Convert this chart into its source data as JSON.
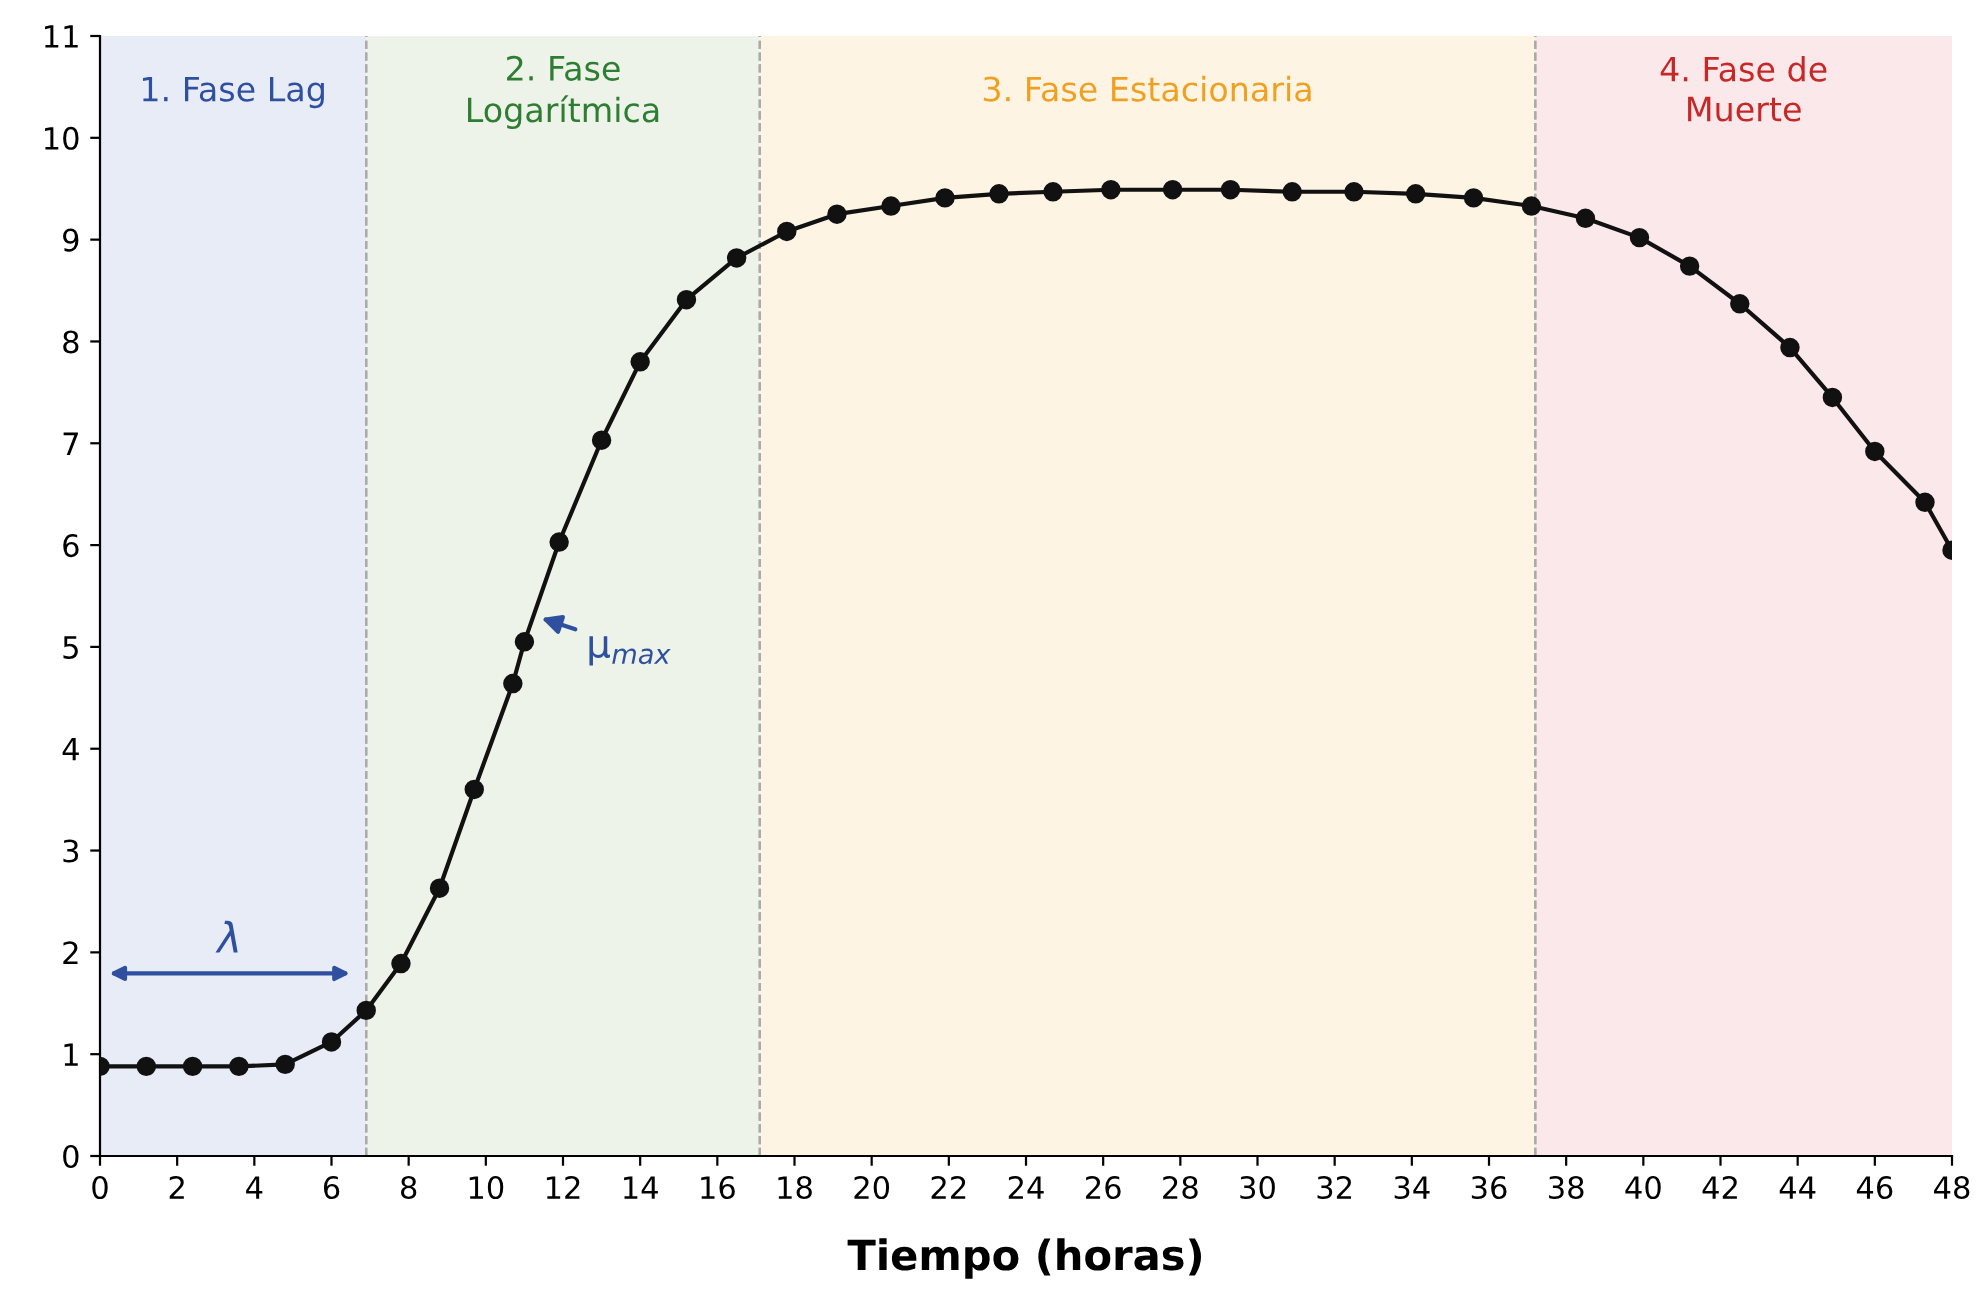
{
  "chart_data": {
    "type": "line",
    "xlabel": "Tiempo (horas)",
    "xlim": [
      0,
      48
    ],
    "ylim": [
      0,
      11
    ],
    "xticks": [
      0,
      2,
      4,
      6,
      8,
      10,
      12,
      14,
      16,
      18,
      20,
      22,
      24,
      26,
      28,
      30,
      32,
      34,
      36,
      38,
      40,
      42,
      44,
      46,
      48
    ],
    "yticks": [
      0,
      1,
      2,
      3,
      4,
      5,
      6,
      7,
      8,
      9,
      10,
      11
    ],
    "series": [
      {
        "color": "#111111",
        "marker": "circle",
        "line_style": "solid",
        "x": [
          0,
          1.2,
          2.4,
          3.6,
          4.8,
          6.0,
          6.9,
          7.8,
          8.8,
          9.7,
          10.7,
          11.0,
          11.9,
          13.0,
          14.0,
          15.2,
          16.5,
          17.8,
          19.1,
          20.5,
          21.9,
          23.3,
          24.7,
          26.2,
          27.8,
          29.3,
          30.9,
          32.5,
          34.1,
          35.6,
          37.1,
          38.5,
          39.9,
          41.2,
          42.5,
          43.8,
          44.9,
          46.0,
          47.3,
          48
        ],
        "values": [
          0.88,
          0.88,
          0.88,
          0.88,
          0.9,
          1.12,
          1.43,
          1.89,
          2.63,
          3.6,
          4.64,
          5.05,
          6.03,
          7.03,
          7.8,
          8.41,
          8.82,
          9.08,
          9.25,
          9.33,
          9.41,
          9.45,
          9.47,
          9.49,
          9.49,
          9.49,
          9.47,
          9.47,
          9.45,
          9.41,
          9.33,
          9.21,
          9.02,
          8.74,
          8.37,
          7.94,
          7.45,
          6.92,
          6.42,
          5.95
        ]
      }
    ],
    "bands": [
      {
        "axis": "x",
        "from": 0,
        "to": 6.9,
        "label": "1. Fase Lag",
        "color": "#e8ecf7"
      },
      {
        "axis": "x",
        "from": 6.9,
        "to": 17.1,
        "label": "2. Fase\nLogarítmica",
        "color": "#edf3e8"
      },
      {
        "axis": "x",
        "from": 17.1,
        "to": 37.2,
        "label": "3. Fase Estacionaria",
        "color": "#fdf4e4"
      },
      {
        "axis": "x",
        "from": 37.2,
        "to": 48,
        "label": "4. Fase de\nMuerte",
        "color": "#fbe8ea"
      }
    ],
    "annotations": [
      "λ",
      {
        "text": "μ$_{max}$",
        "x": 11.3,
        "y": 5.3
      }
    ],
    "grid": false
  }
}
